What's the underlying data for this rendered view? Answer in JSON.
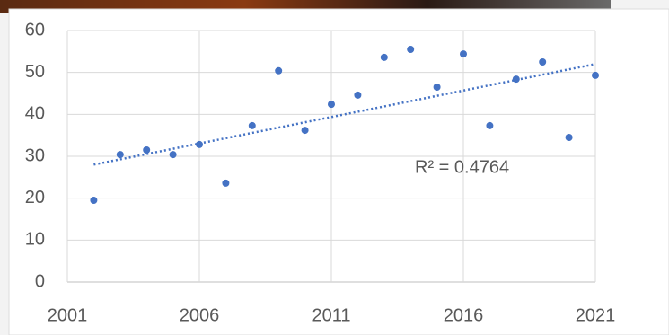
{
  "chart_data": {
    "type": "scatter",
    "x": [
      2002,
      2003,
      2004,
      2005,
      2006,
      2007,
      2008,
      2009,
      2010,
      2011,
      2012,
      2013,
      2014,
      2015,
      2016,
      2017,
      2018,
      2019,
      2020,
      2021
    ],
    "series": [
      {
        "color": "#4472c4",
        "values": [
          19.5,
          30.4,
          31.5,
          30.4,
          32.8,
          23.6,
          37.3,
          50.4,
          36.2,
          42.4,
          44.6,
          53.6,
          55.5,
          46.5,
          54.4,
          37.3,
          48.4,
          52.5,
          34.5,
          49.3
        ]
      }
    ],
    "trendline": {
      "x": [
        2002,
        2021
      ],
      "y": [
        28,
        52
      ],
      "color": "#4472c4"
    },
    "annotation": "R² = 0.4764",
    "xlim": [
      2001,
      2021
    ],
    "xticks": [
      2001,
      2006,
      2011,
      2016,
      2021
    ],
    "ylim": [
      0,
      60
    ],
    "yticks": [
      0,
      10,
      20,
      30,
      40,
      50,
      60
    ],
    "grid": true
  }
}
